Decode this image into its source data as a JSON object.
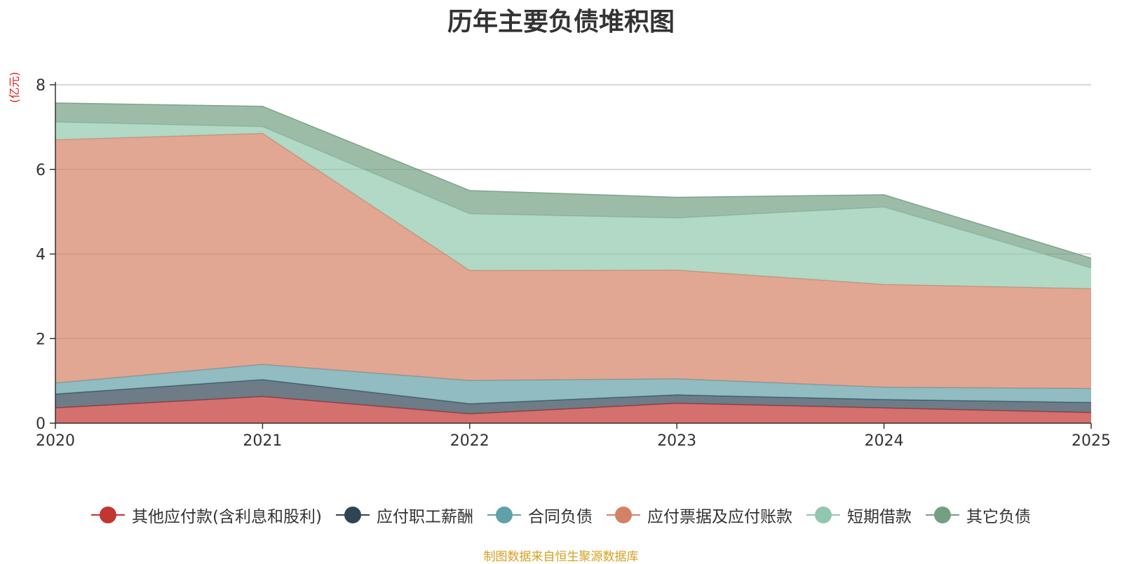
{
  "chart_data": {
    "type": "area",
    "stacked": true,
    "title": "历年主要负债堆积图",
    "unit_label": "(亿元)",
    "x": [
      "2020",
      "2021",
      "2022",
      "2023",
      "2024",
      "2025"
    ],
    "ylim": [
      0,
      8
    ],
    "yticks": [
      0,
      2,
      4,
      6,
      8
    ],
    "grid": true,
    "legend_position": "bottom",
    "series": [
      {
        "name": "其他应付款(含利息和股利)",
        "color": "#c23531",
        "values": [
          0.36,
          0.63,
          0.22,
          0.47,
          0.36,
          0.25
        ]
      },
      {
        "name": "应付职工薪酬",
        "color": "#2f4554",
        "values": [
          0.33,
          0.4,
          0.24,
          0.2,
          0.2,
          0.24
        ]
      },
      {
        "name": "合同负债",
        "color": "#61a0a8",
        "values": [
          0.26,
          0.36,
          0.55,
          0.38,
          0.29,
          0.33
        ]
      },
      {
        "name": "应付票据及应付账款",
        "color": "#d48265",
        "values": [
          5.75,
          5.46,
          2.6,
          2.57,
          2.43,
          2.36
        ]
      },
      {
        "name": "短期借款",
        "color": "#91c7ae",
        "values": [
          0.42,
          0.16,
          1.34,
          1.23,
          1.83,
          0.49
        ]
      },
      {
        "name": "其它负债",
        "color": "#749f83",
        "values": [
          0.45,
          0.48,
          0.55,
          0.49,
          0.29,
          0.23
        ]
      }
    ]
  },
  "source": "制图数据来自恒生聚源数据库"
}
